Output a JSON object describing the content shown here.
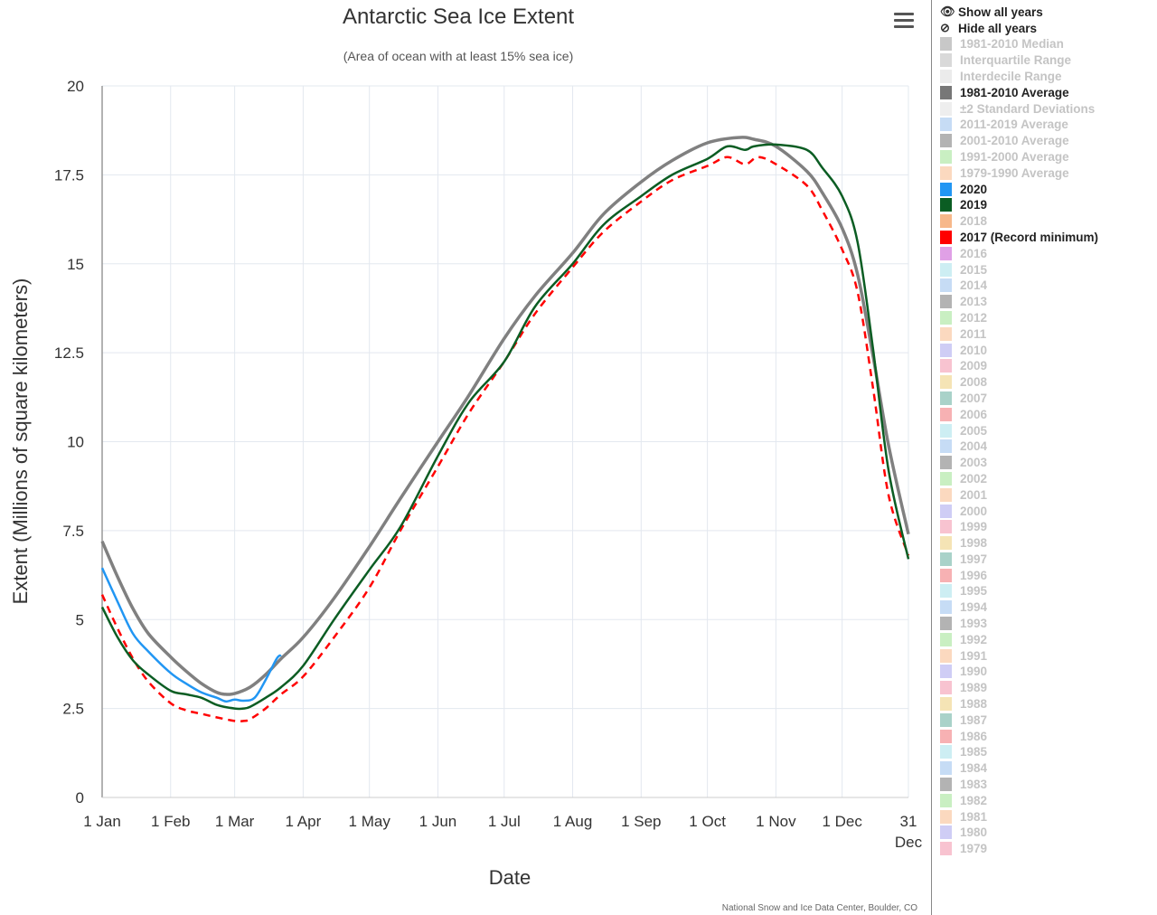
{
  "controls": {
    "show_all": "Show all years",
    "hide_all": "Hide all years"
  },
  "legend": [
    {
      "label": "1981-2010 Median",
      "color": "#c8c8c8",
      "active": false
    },
    {
      "label": "Interquartile Range",
      "color": "#d9d9d9",
      "active": false
    },
    {
      "label": "Interdecile Range",
      "color": "#ebebeb",
      "active": false
    },
    {
      "label": "1981-2010 Average",
      "color": "#777777",
      "active": true
    },
    {
      "label": "±2 Standard Deviations",
      "color": "#eeeeee",
      "active": false
    },
    {
      "label": "2011-2019 Average",
      "color": "#c6dcf5",
      "active": false
    },
    {
      "label": "2001-2010 Average",
      "color": "#b3b3b3",
      "active": false
    },
    {
      "label": "1991-2000 Average",
      "color": "#c9efc2",
      "active": false
    },
    {
      "label": "1979-1990 Average",
      "color": "#fbd9bf",
      "active": false
    },
    {
      "label": "2020",
      "color": "#2196f3",
      "active": true
    },
    {
      "label": "2019",
      "color": "#0b5d23",
      "active": true
    },
    {
      "label": "2018",
      "color": "#f7b88a",
      "active": false
    },
    {
      "label": "2017 (Record minimum)",
      "color": "#ff0000",
      "active": true
    },
    {
      "label": "2016",
      "color": "#e0a0e6",
      "active": false
    },
    {
      "label": "2015",
      "color": "#cdeef3",
      "active": false
    },
    {
      "label": "2014",
      "color": "#c6dcf5",
      "active": false
    },
    {
      "label": "2013",
      "color": "#b3b3b3",
      "active": false
    },
    {
      "label": "2012",
      "color": "#c9efc2",
      "active": false
    },
    {
      "label": "2011",
      "color": "#fbd9bf",
      "active": false
    },
    {
      "label": "2010",
      "color": "#cfcdf5",
      "active": false
    },
    {
      "label": "2009",
      "color": "#f8c3d0",
      "active": false
    },
    {
      "label": "2008",
      "color": "#f5e4b5",
      "active": false
    },
    {
      "label": "2007",
      "color": "#a9d2c9",
      "active": false
    },
    {
      "label": "2006",
      "color": "#f7b1b3",
      "active": false
    },
    {
      "label": "2005",
      "color": "#cdeef3",
      "active": false
    },
    {
      "label": "2004",
      "color": "#c6dcf5",
      "active": false
    },
    {
      "label": "2003",
      "color": "#b3b3b3",
      "active": false
    },
    {
      "label": "2002",
      "color": "#c9efc2",
      "active": false
    },
    {
      "label": "2001",
      "color": "#fbd9bf",
      "active": false
    },
    {
      "label": "2000",
      "color": "#cfcdf5",
      "active": false
    },
    {
      "label": "1999",
      "color": "#f8c3d0",
      "active": false
    },
    {
      "label": "1998",
      "color": "#f5e4b5",
      "active": false
    },
    {
      "label": "1997",
      "color": "#a9d2c9",
      "active": false
    },
    {
      "label": "1996",
      "color": "#f7b1b3",
      "active": false
    },
    {
      "label": "1995",
      "color": "#cdeef3",
      "active": false
    },
    {
      "label": "1994",
      "color": "#c6dcf5",
      "active": false
    },
    {
      "label": "1993",
      "color": "#b3b3b3",
      "active": false
    },
    {
      "label": "1992",
      "color": "#c9efc2",
      "active": false
    },
    {
      "label": "1991",
      "color": "#fbd9bf",
      "active": false
    },
    {
      "label": "1990",
      "color": "#cfcdf5",
      "active": false
    },
    {
      "label": "1989",
      "color": "#f8c3d0",
      "active": false
    },
    {
      "label": "1988",
      "color": "#f5e4b5",
      "active": false
    },
    {
      "label": "1987",
      "color": "#a9d2c9",
      "active": false
    },
    {
      "label": "1986",
      "color": "#f7b1b3",
      "active": false
    },
    {
      "label": "1985",
      "color": "#cdeef3",
      "active": false
    },
    {
      "label": "1984",
      "color": "#c6dcf5",
      "active": false
    },
    {
      "label": "1983",
      "color": "#b3b3b3",
      "active": false
    },
    {
      "label": "1982",
      "color": "#c9efc2",
      "active": false
    },
    {
      "label": "1981",
      "color": "#fbd9bf",
      "active": false
    },
    {
      "label": "1980",
      "color": "#cfcdf5",
      "active": false
    },
    {
      "label": "1979",
      "color": "#f8c3d0",
      "active": false
    }
  ],
  "credits": "National Snow and Ice Data Center, Boulder, CO",
  "chart_data": {
    "type": "line",
    "title": "Antarctic Sea Ice Extent",
    "subtitle": "(Area of ocean with at least 15% sea ice)",
    "xlabel": "Date",
    "ylabel": "Extent (Millions of square kilometers)",
    "ylim": [
      0,
      20
    ],
    "xlim": [
      "1 Jan",
      "31 Dec"
    ],
    "grid": true,
    "y_ticks": [
      "0",
      "2.5",
      "5",
      "7.5",
      "10",
      "12.5",
      "15",
      "17.5",
      "20"
    ],
    "x_ticks": [
      {
        "date": "1 Jan",
        "label": "1 Jan"
      },
      {
        "date": "1 Feb",
        "label": "1 Feb"
      },
      {
        "date": "1 Mar",
        "label": "1 Mar"
      },
      {
        "date": "1 Apr",
        "label": "1 Apr"
      },
      {
        "date": "1 May",
        "label": "1 May"
      },
      {
        "date": "1 Jun",
        "label": "1 Jun"
      },
      {
        "date": "1 Jul",
        "label": "1 Jul"
      },
      {
        "date": "1 Aug",
        "label": "1 Aug"
      },
      {
        "date": "1 Sep",
        "label": "1 Sep"
      },
      {
        "date": "1 Oct",
        "label": "1 Oct"
      },
      {
        "date": "1 Nov",
        "label": "1 Nov"
      },
      {
        "date": "1 Dec",
        "label": "1 Dec"
      },
      {
        "date": "31 Dec",
        "label": "31",
        "label2": "Dec"
      }
    ],
    "series": [
      {
        "name": "1981-2010 Average",
        "color": "#808080",
        "width": 3.5,
        "dash": "",
        "points": [
          [
            "1 Jan",
            7.2
          ],
          [
            "8 Jan",
            6.2
          ],
          [
            "15 Jan",
            5.3
          ],
          [
            "22 Jan",
            4.6
          ],
          [
            "1 Feb",
            3.95
          ],
          [
            "8 Feb",
            3.55
          ],
          [
            "15 Feb",
            3.2
          ],
          [
            "22 Feb",
            2.95
          ],
          [
            "26 Feb",
            2.9
          ],
          [
            "1 Mar",
            2.92
          ],
          [
            "8 Mar",
            3.1
          ],
          [
            "15 Mar",
            3.45
          ],
          [
            "22 Mar",
            3.9
          ],
          [
            "1 Apr",
            4.5
          ],
          [
            "15 Apr",
            5.6
          ],
          [
            "1 May",
            7.05
          ],
          [
            "15 May",
            8.4
          ],
          [
            "1 Jun",
            10.0
          ],
          [
            "15 Jun",
            11.3
          ],
          [
            "1 Jul",
            12.9
          ],
          [
            "15 Jul",
            14.1
          ],
          [
            "1 Aug",
            15.3
          ],
          [
            "15 Aug",
            16.4
          ],
          [
            "1 Sep",
            17.3
          ],
          [
            "15 Sep",
            17.9
          ],
          [
            "1 Oct",
            18.4
          ],
          [
            "15 Oct",
            18.55
          ],
          [
            "22 Oct",
            18.5
          ],
          [
            "1 Nov",
            18.3
          ],
          [
            "15 Nov",
            17.6
          ],
          [
            "22 Nov",
            17.0
          ],
          [
            "1 Dec",
            16.0
          ],
          [
            "8 Dec",
            14.7
          ],
          [
            "15 Dec",
            12.4
          ],
          [
            "22 Dec",
            9.9
          ],
          [
            "31 Dec",
            7.4
          ]
        ]
      },
      {
        "name": "2017 (Record minimum)",
        "color": "#ff0000",
        "width": 2.5,
        "dash": "8,6",
        "points": [
          [
            "1 Jan",
            5.7
          ],
          [
            "8 Jan",
            4.75
          ],
          [
            "15 Jan",
            3.9
          ],
          [
            "22 Jan",
            3.25
          ],
          [
            "1 Feb",
            2.65
          ],
          [
            "8 Feb",
            2.45
          ],
          [
            "15 Feb",
            2.35
          ],
          [
            "22 Feb",
            2.25
          ],
          [
            "1 Mar",
            2.15
          ],
          [
            "5 Mar",
            2.15
          ],
          [
            "8 Mar",
            2.2
          ],
          [
            "15 Mar",
            2.5
          ],
          [
            "22 Mar",
            2.9
          ],
          [
            "1 Apr",
            3.4
          ],
          [
            "15 Apr",
            4.5
          ],
          [
            "1 May",
            5.9
          ],
          [
            "15 May",
            7.5
          ],
          [
            "1 Jun",
            9.3
          ],
          [
            "15 Jun",
            10.8
          ],
          [
            "1 Jul",
            12.25
          ],
          [
            "15 Jul",
            13.6
          ],
          [
            "1 Aug",
            14.9
          ],
          [
            "15 Aug",
            15.9
          ],
          [
            "1 Sep",
            16.75
          ],
          [
            "15 Sep",
            17.35
          ],
          [
            "1 Oct",
            17.75
          ],
          [
            "10 Oct",
            18.0
          ],
          [
            "18 Oct",
            17.8
          ],
          [
            "24 Oct",
            18.0
          ],
          [
            "1 Nov",
            17.8
          ],
          [
            "15 Nov",
            17.2
          ],
          [
            "22 Nov",
            16.5
          ],
          [
            "1 Dec",
            15.4
          ],
          [
            "8 Dec",
            14.2
          ],
          [
            "15 Dec",
            11.5
          ],
          [
            "22 Dec",
            8.5
          ],
          [
            "31 Dec",
            6.8
          ]
        ]
      },
      {
        "name": "2019",
        "color": "#0b5d23",
        "width": 2.5,
        "dash": "",
        "points": [
          [
            "1 Jan",
            5.35
          ],
          [
            "8 Jan",
            4.5
          ],
          [
            "15 Jan",
            3.85
          ],
          [
            "22 Jan",
            3.45
          ],
          [
            "1 Feb",
            3.0
          ],
          [
            "8 Feb",
            2.9
          ],
          [
            "15 Feb",
            2.8
          ],
          [
            "22 Feb",
            2.6
          ],
          [
            "1 Mar",
            2.5
          ],
          [
            "5 Mar",
            2.5
          ],
          [
            "8 Mar",
            2.55
          ],
          [
            "15 Mar",
            2.8
          ],
          [
            "22 Mar",
            3.1
          ],
          [
            "1 Apr",
            3.7
          ],
          [
            "15 Apr",
            5.0
          ],
          [
            "1 May",
            6.4
          ],
          [
            "15 May",
            7.6
          ],
          [
            "1 Jun",
            9.6
          ],
          [
            "15 Jun",
            11.1
          ],
          [
            "1 Jul",
            12.25
          ],
          [
            "15 Jul",
            13.8
          ],
          [
            "1 Aug",
            15.0
          ],
          [
            "15 Aug",
            16.1
          ],
          [
            "1 Sep",
            16.9
          ],
          [
            "15 Sep",
            17.5
          ],
          [
            "1 Oct",
            17.95
          ],
          [
            "10 Oct",
            18.3
          ],
          [
            "18 Oct",
            18.2
          ],
          [
            "22 Oct",
            18.3
          ],
          [
            "1 Nov",
            18.35
          ],
          [
            "15 Nov",
            18.2
          ],
          [
            "22 Nov",
            17.7
          ],
          [
            "1 Dec",
            16.9
          ],
          [
            "8 Dec",
            15.6
          ],
          [
            "15 Dec",
            12.6
          ],
          [
            "22 Dec",
            9.2
          ],
          [
            "31 Dec",
            6.7
          ]
        ]
      },
      {
        "name": "2020",
        "color": "#2196f3",
        "width": 2.5,
        "dash": "",
        "points": [
          [
            "1 Jan",
            6.45
          ],
          [
            "8 Jan",
            5.5
          ],
          [
            "15 Jan",
            4.6
          ],
          [
            "22 Jan",
            4.1
          ],
          [
            "1 Feb",
            3.5
          ],
          [
            "8 Feb",
            3.2
          ],
          [
            "15 Feb",
            2.95
          ],
          [
            "22 Feb",
            2.8
          ],
          [
            "26 Feb",
            2.7
          ],
          [
            "1 Mar",
            2.75
          ],
          [
            "5 Mar",
            2.72
          ],
          [
            "10 Mar",
            2.8
          ],
          [
            "15 Mar",
            3.3
          ],
          [
            "20 Mar",
            3.9
          ],
          [
            "22 Mar",
            4.0
          ]
        ]
      }
    ]
  }
}
